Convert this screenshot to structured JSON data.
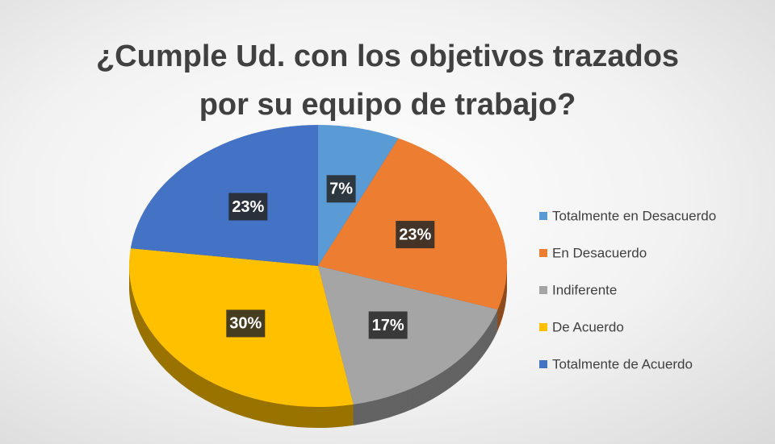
{
  "chart_data": {
    "type": "pie",
    "title": "¿Cumple Ud. con los objetivos trazados por su equipo de trabajo?",
    "categories": [
      "Totalmente en Desacuerdo",
      "En Desacuerdo",
      "Indiferente",
      "De Acuerdo",
      "Totalmente de Acuerdo"
    ],
    "values": [
      7,
      23,
      17,
      30,
      23
    ],
    "value_labels": [
      "7%",
      "23%",
      "17%",
      "30%",
      "23%"
    ],
    "colors": [
      "#5b9bd5",
      "#ed7d31",
      "#a5a5a5",
      "#ffc000",
      "#4472c4"
    ],
    "legend": "right"
  }
}
